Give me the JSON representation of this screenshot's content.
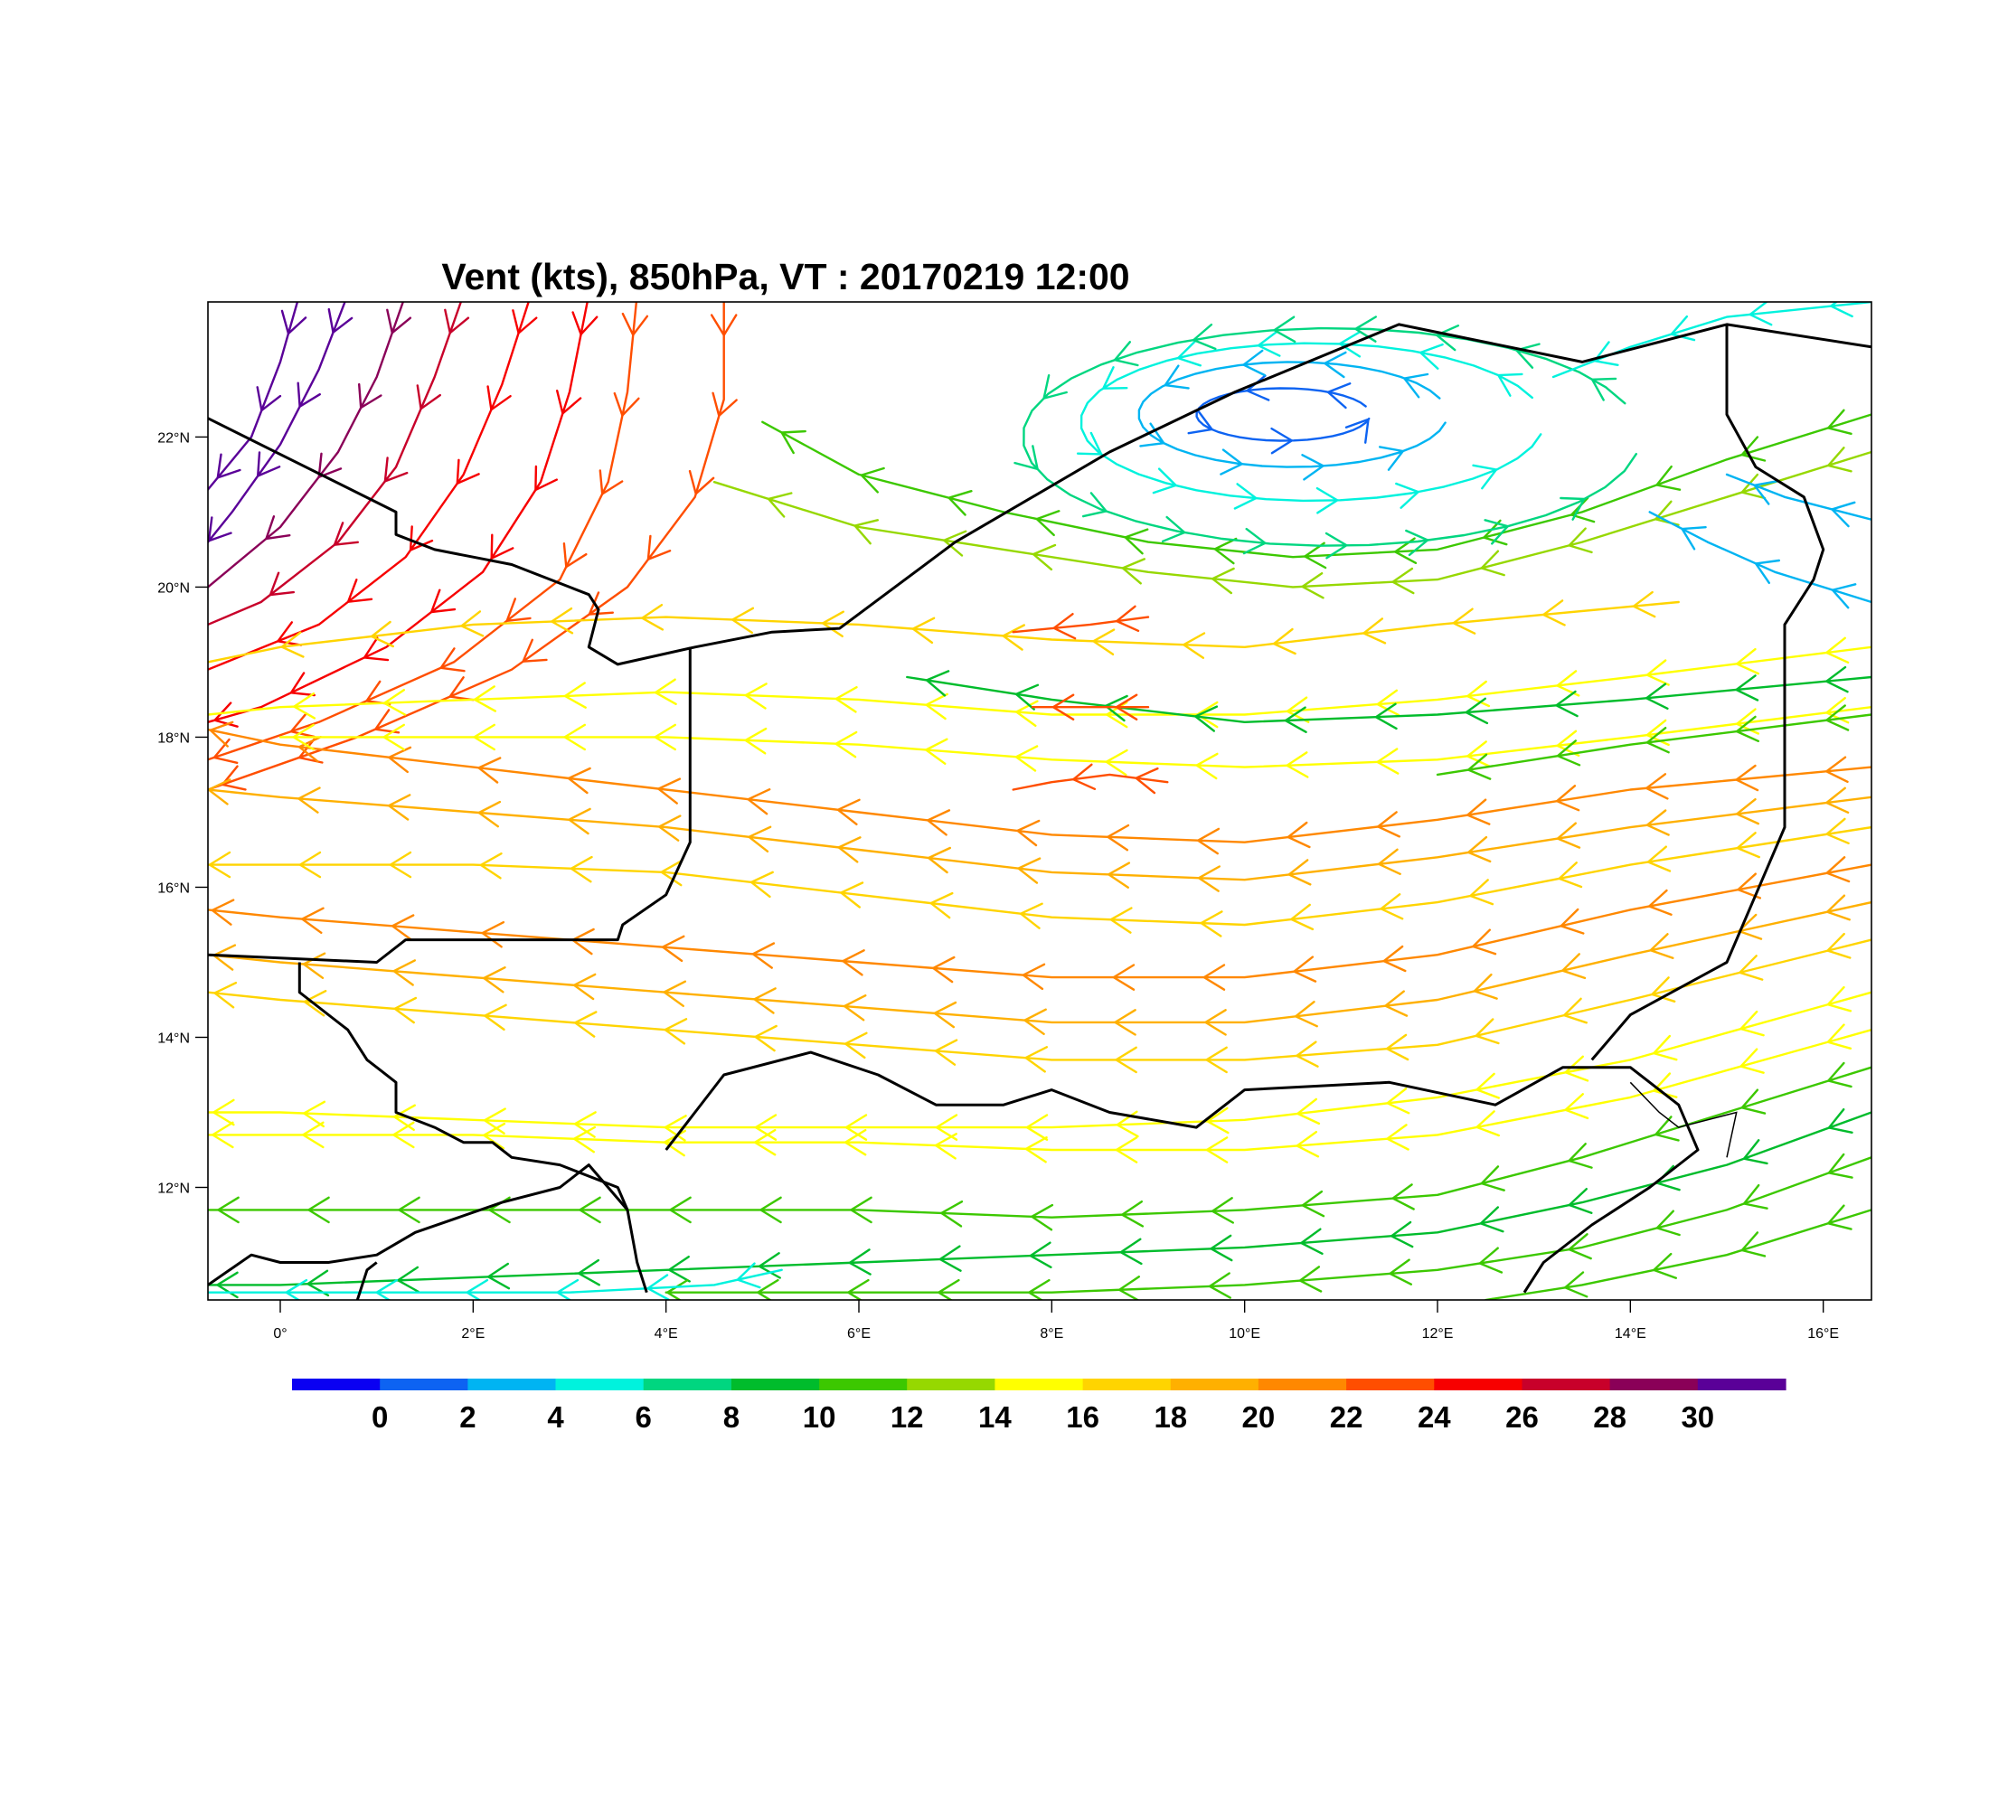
{
  "title": "Vent (kts), 850hPa, VT : 20170219  12:00",
  "map": {
    "lon_range": [
      -0.75,
      16.5
    ],
    "lat_range": [
      10.5,
      23.8
    ],
    "lon_ticks": [
      {
        "value": 0,
        "label": "0°"
      },
      {
        "value": 2,
        "label": "2°E"
      },
      {
        "value": 4,
        "label": "4°E"
      },
      {
        "value": 6,
        "label": "6°E"
      },
      {
        "value": 8,
        "label": "8°E"
      },
      {
        "value": 10,
        "label": "10°E"
      },
      {
        "value": 12,
        "label": "12°E"
      },
      {
        "value": 14,
        "label": "14°E"
      },
      {
        "value": 16,
        "label": "16°E"
      }
    ],
    "lat_ticks": [
      {
        "value": 12,
        "label": "12°N"
      },
      {
        "value": 14,
        "label": "14°N"
      },
      {
        "value": 16,
        "label": "16°N"
      },
      {
        "value": 18,
        "label": "18°N"
      },
      {
        "value": 20,
        "label": "20°N"
      },
      {
        "value": 22,
        "label": "22°N"
      }
    ],
    "borders": [
      [
        [
          -0.75,
          22.25
        ],
        [
          1.2,
          21.0
        ],
        [
          1.2,
          20.7
        ],
        [
          1.6,
          20.5
        ],
        [
          2.0,
          20.4
        ],
        [
          2.4,
          20.3
        ],
        [
          3.0,
          20.0
        ],
        [
          3.2,
          19.9
        ],
        [
          3.3,
          19.7
        ],
        [
          3.2,
          19.2
        ],
        [
          3.5,
          18.97
        ],
        [
          4.3,
          19.2
        ],
        [
          5.1,
          19.4
        ],
        [
          5.8,
          19.45
        ],
        [
          7.0,
          20.6
        ],
        [
          8.6,
          21.8
        ],
        [
          9.9,
          22.6
        ],
        [
          11.6,
          23.5
        ],
        [
          13.5,
          23.0
        ],
        [
          15.0,
          23.5
        ],
        [
          16.5,
          23.2
        ]
      ],
      [
        [
          -0.75,
          15.1
        ],
        [
          1.0,
          15.0
        ],
        [
          1.3,
          15.3
        ],
        [
          3.5,
          15.3
        ],
        [
          3.55,
          15.5
        ],
        [
          4.0,
          15.9
        ],
        [
          4.25,
          16.6
        ],
        [
          4.25,
          19.2
        ]
      ],
      [
        [
          0.2,
          15.0
        ],
        [
          0.2,
          14.6
        ],
        [
          0.3,
          14.5
        ],
        [
          0.7,
          14.1
        ],
        [
          0.9,
          13.7
        ],
        [
          1.0,
          13.6
        ],
        [
          1.2,
          13.4
        ],
        [
          1.2,
          13.0
        ],
        [
          1.6,
          12.8
        ],
        [
          1.9,
          12.6
        ],
        [
          2.2,
          12.6
        ],
        [
          2.4,
          12.4
        ],
        [
          2.9,
          12.3
        ],
        [
          3.5,
          12.0
        ],
        [
          3.6,
          11.7
        ],
        [
          3.7,
          11.0
        ],
        [
          3.8,
          10.6
        ]
      ],
      [
        [
          4.0,
          12.5
        ],
        [
          4.3,
          13.0
        ],
        [
          4.6,
          13.5
        ],
        [
          5.5,
          13.8
        ],
        [
          6.2,
          13.5
        ],
        [
          6.8,
          13.1
        ],
        [
          7.5,
          13.1
        ],
        [
          8.0,
          13.3
        ],
        [
          8.6,
          13.0
        ],
        [
          9.5,
          12.8
        ],
        [
          10.0,
          13.3
        ],
        [
          11.5,
          13.4
        ],
        [
          12.6,
          13.1
        ],
        [
          13.3,
          13.6
        ],
        [
          14.0,
          13.6
        ],
        [
          14.5,
          13.1
        ],
        [
          14.7,
          12.5
        ],
        [
          14.2,
          12.0
        ],
        [
          13.6,
          11.5
        ],
        [
          13.1,
          11.0
        ],
        [
          12.9,
          10.6
        ]
      ],
      [
        [
          13.6,
          13.7
        ],
        [
          14.0,
          14.3
        ],
        [
          15.0,
          15.0
        ],
        [
          15.3,
          15.9
        ],
        [
          15.6,
          16.8
        ],
        [
          15.6,
          19.5
        ],
        [
          15.9,
          20.1
        ],
        [
          16.0,
          20.5
        ],
        [
          15.8,
          21.2
        ],
        [
          15.3,
          21.6
        ],
        [
          15.0,
          22.3
        ],
        [
          15.0,
          23.5
        ]
      ],
      [
        [
          -0.75,
          10.7
        ],
        [
          -0.3,
          11.1
        ],
        [
          0.0,
          11.0
        ],
        [
          0.5,
          11.0
        ],
        [
          1.0,
          11.1
        ],
        [
          1.4,
          11.4
        ],
        [
          2.3,
          11.8
        ],
        [
          2.9,
          12.0
        ],
        [
          3.2,
          12.3
        ],
        [
          3.6,
          11.7
        ]
      ],
      [
        [
          0.8,
          10.5
        ],
        [
          0.9,
          10.9
        ],
        [
          1.0,
          11.0
        ]
      ]
    ],
    "thin_borders": [
      [
        [
          14.0,
          13.4
        ],
        [
          14.3,
          13.0
        ],
        [
          14.5,
          12.8
        ],
        [
          14.8,
          12.9
        ],
        [
          15.1,
          13.0
        ],
        [
          15.0,
          12.4
        ]
      ]
    ]
  },
  "colorbar": {
    "colors": [
      "#0a00f2",
      "#0d63f2",
      "#00b4f2",
      "#00f2dd",
      "#00d680",
      "#00bc2c",
      "#3cc800",
      "#96d800",
      "#ffff00",
      "#ffd400",
      "#ffb000",
      "#ff8800",
      "#ff4e00",
      "#f70000",
      "#c8002a",
      "#8a0058",
      "#5a0098"
    ],
    "labels": [
      "0",
      "2",
      "4",
      "6",
      "8",
      "10",
      "12",
      "14",
      "16",
      "18",
      "20",
      "22",
      "24",
      "26",
      "28",
      "30"
    ]
  }
}
